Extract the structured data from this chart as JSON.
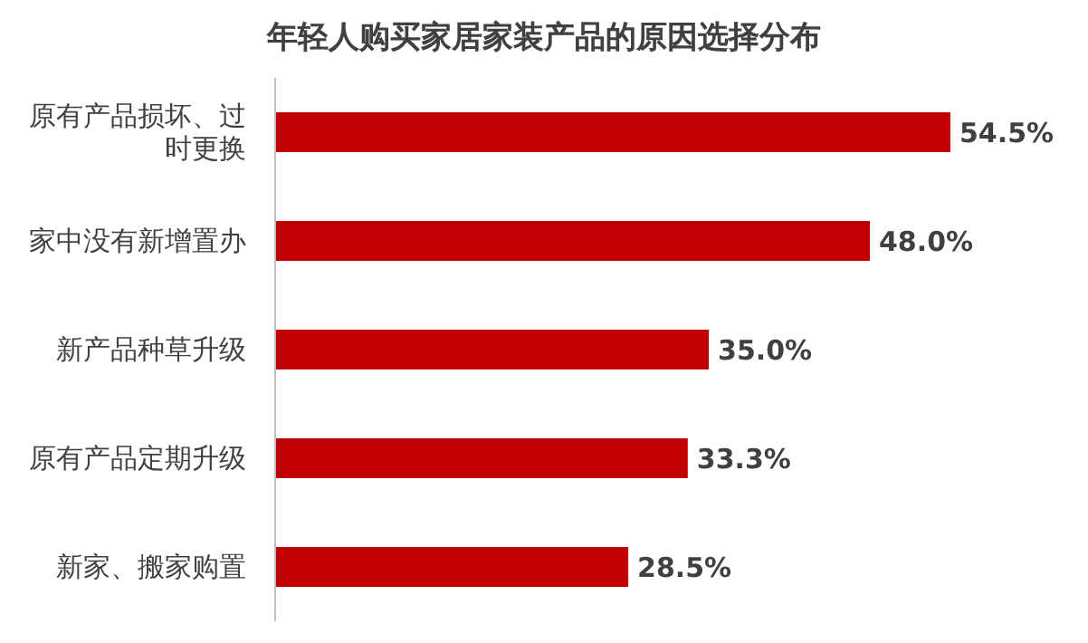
{
  "chart_data": {
    "type": "bar",
    "orientation": "horizontal",
    "title": "年轻人购买家居家装产品的原因选择分布",
    "categories": [
      "原有产品损坏、过时更换",
      "家中没有新增置办",
      "新产品种草升级",
      "原有产品定期升级",
      "新家、搬家购置"
    ],
    "values": [
      54.5,
      48.0,
      35.0,
      33.3,
      28.5
    ],
    "color": "#c00000",
    "value_labels": [
      "54.5%",
      "48.0%",
      "35.0%",
      "33.3%",
      "28.5%"
    ]
  }
}
